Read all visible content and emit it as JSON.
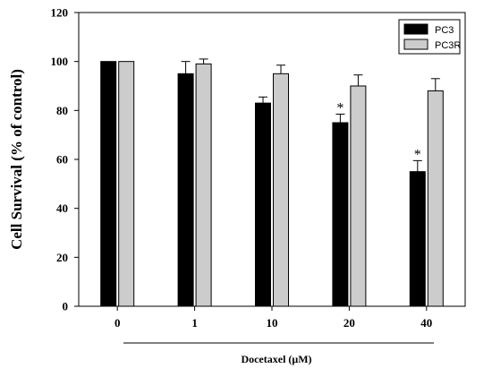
{
  "chart_data": {
    "type": "bar",
    "categories": [
      "0",
      "1",
      "10",
      "20",
      "40"
    ],
    "series": [
      {
        "name": "PC3",
        "values": [
          100,
          95,
          83,
          75,
          55
        ],
        "errors": [
          0,
          5,
          2.5,
          3.5,
          4.5
        ],
        "color": "#000000"
      },
      {
        "name": "PC3R",
        "values": [
          100,
          99,
          95,
          90,
          88
        ],
        "errors": [
          0,
          2,
          3.5,
          4.5,
          5
        ],
        "color": "#cccccc"
      }
    ],
    "annotations": [
      {
        "category": "20",
        "series": "PC3",
        "text": "*"
      },
      {
        "category": "40",
        "series": "PC3",
        "text": "*"
      }
    ],
    "xlabel": "Docetaxel (μM)",
    "ylabel": "Cell Survival (% of control)",
    "ylim": [
      0,
      120
    ],
    "yticks": [
      0,
      20,
      40,
      60,
      80,
      100,
      120
    ],
    "grid": false,
    "legend_position": "top-right"
  }
}
